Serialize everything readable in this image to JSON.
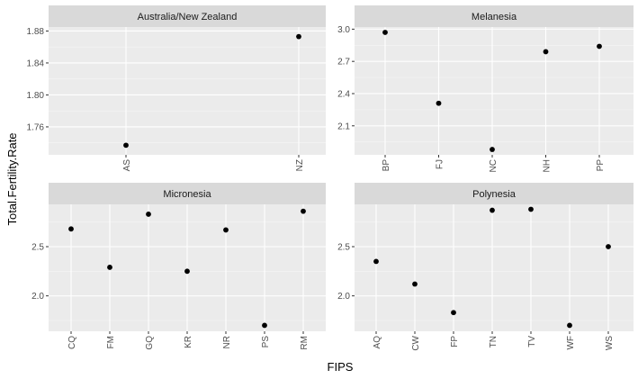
{
  "chart_data": {
    "type": "scatter",
    "xlabel": "FIPS",
    "ylabel": "Total.Fertility.Rate",
    "panels": [
      {
        "name": "Australia/New Zealand",
        "categories": [
          "AS",
          "NZ"
        ],
        "values": [
          1.737,
          1.873
        ],
        "ylim": [
          1.725,
          1.885
        ],
        "yticks": [
          1.76,
          1.8,
          1.84,
          1.88
        ],
        "ytick_labels": [
          "1.76",
          "1.80",
          "1.84",
          "1.88"
        ]
      },
      {
        "name": "Melanesia",
        "categories": [
          "BP",
          "FJ",
          "NC",
          "NH",
          "PP"
        ],
        "values": [
          2.97,
          2.31,
          1.88,
          2.79,
          2.84
        ],
        "ylim": [
          1.83,
          3.02
        ],
        "yticks": [
          2.1,
          2.4,
          2.7,
          3.0
        ],
        "ytick_labels": [
          "2.1",
          "2.4",
          "2.7",
          "3.0"
        ]
      },
      {
        "name": "Micronesia",
        "categories": [
          "CQ",
          "FM",
          "GQ",
          "KR",
          "NR",
          "PS",
          "RM"
        ],
        "values": [
          2.68,
          2.29,
          2.83,
          2.25,
          2.67,
          1.7,
          2.86
        ],
        "ylim": [
          1.64,
          2.93
        ],
        "yticks": [
          2.0,
          2.5
        ],
        "ytick_labels": [
          "2.0",
          "2.5"
        ]
      },
      {
        "name": "Polynesia",
        "categories": [
          "AQ",
          "CW",
          "FP",
          "TN",
          "TV",
          "WF",
          "WS"
        ],
        "values": [
          2.35,
          2.12,
          1.83,
          2.87,
          2.88,
          1.7,
          2.5
        ],
        "ylim": [
          1.64,
          2.93
        ],
        "yticks": [
          2.0,
          2.5
        ],
        "ytick_labels": [
          "2.0",
          "2.5"
        ]
      }
    ],
    "grid": true
  }
}
